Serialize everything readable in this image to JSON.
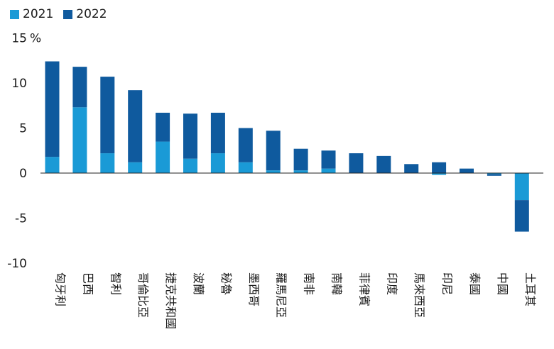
{
  "legend": [
    {
      "label": "2021",
      "color": "#1a9ad6"
    },
    {
      "label": "2022",
      "color": "#0f5a9e"
    }
  ],
  "unit_label": "%",
  "chart_data": {
    "type": "bar",
    "stacked": true,
    "categories": [
      "匈牙利",
      "巴西",
      "智利",
      "哥倫比亞",
      "捷克共和國",
      "波蘭",
      "秘魯",
      "墨西哥",
      "羅馬尼亞",
      "南非",
      "南韓",
      "菲律賓",
      "印度",
      "馬來西亞",
      "印尼",
      "泰國",
      "中國",
      "土耳其"
    ],
    "series": [
      {
        "name": "2021",
        "color": "#1a9ad6",
        "values": [
          1.8,
          7.3,
          2.2,
          1.2,
          3.5,
          1.6,
          2.2,
          1.2,
          0.3,
          0.3,
          0.5,
          0.0,
          0.0,
          0.0,
          -0.2,
          0.0,
          -0.1,
          -3.0
        ]
      },
      {
        "name": "2022",
        "color": "#0f5a9e",
        "values": [
          10.6,
          4.5,
          8.5,
          8.0,
          3.2,
          5.0,
          4.5,
          3.8,
          4.4,
          2.4,
          2.0,
          2.2,
          1.9,
          1.0,
          1.2,
          0.5,
          -0.2,
          -3.5
        ]
      }
    ],
    "y_ticks": [
      15,
      10,
      5,
      0,
      -5,
      -10
    ],
    "ylim": [
      -10,
      15
    ],
    "grid": false,
    "legend_position": "top-left"
  }
}
